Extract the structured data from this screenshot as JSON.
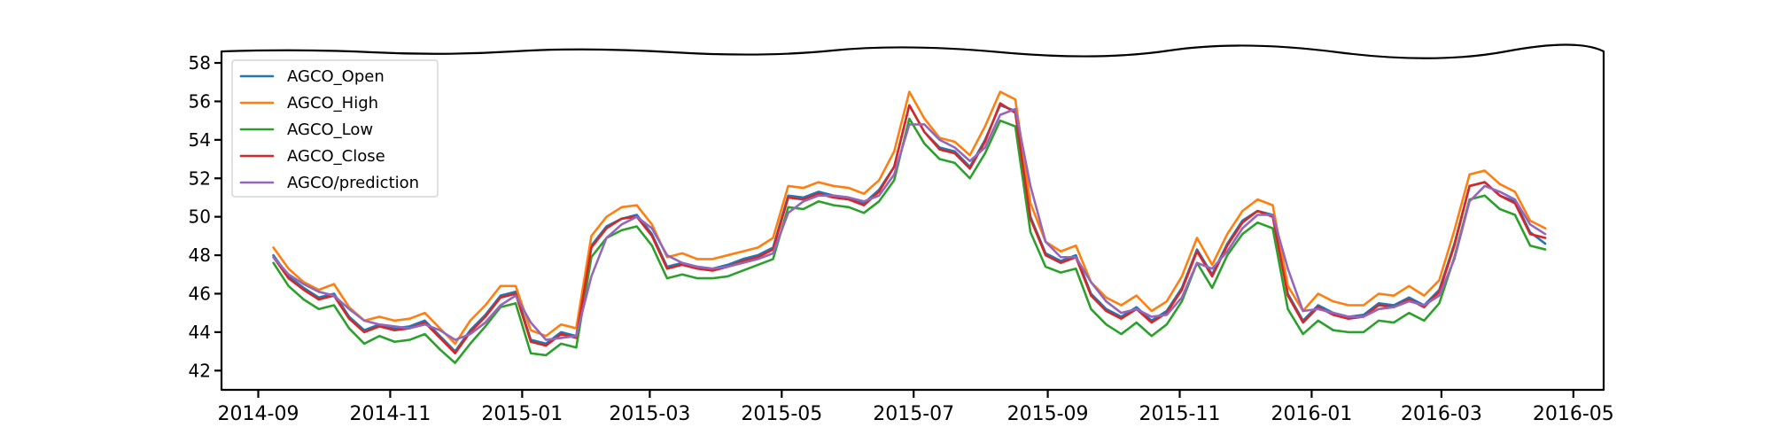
{
  "chart_data": {
    "type": "line",
    "title": "",
    "xlabel": "",
    "ylabel": "",
    "x_axis_kind": "date",
    "xlim": [
      "2014-08-15",
      "2016-05-15"
    ],
    "ylim": [
      41,
      58.6
    ],
    "grid": false,
    "legend_position": "top-left",
    "x_ticks": [
      "2014-09-01",
      "2014-11-01",
      "2015-01-01",
      "2015-03-01",
      "2015-05-01",
      "2015-07-01",
      "2015-09-01",
      "2015-11-01",
      "2016-01-01",
      "2016-03-01",
      "2016-05-01"
    ],
    "x_tick_labels": [
      "2014-09",
      "2014-11",
      "2015-01",
      "2015-03",
      "2015-05",
      "2015-07",
      "2015-09",
      "2015-11",
      "2016-01",
      "2016-03",
      "2016-05"
    ],
    "y_ticks": [
      42,
      44,
      46,
      48,
      50,
      52,
      54,
      56,
      58
    ],
    "y_tick_labels": [
      "42",
      "44",
      "46",
      "48",
      "50",
      "52",
      "54",
      "56",
      "58"
    ],
    "x": [
      "2014-09-08",
      "2014-09-15",
      "2014-09-22",
      "2014-09-29",
      "2014-10-06",
      "2014-10-13",
      "2014-10-20",
      "2014-10-27",
      "2014-11-03",
      "2014-11-10",
      "2014-11-17",
      "2014-11-24",
      "2014-12-01",
      "2014-12-08",
      "2014-12-15",
      "2014-12-22",
      "2014-12-29",
      "2015-01-05",
      "2015-01-12",
      "2015-01-19",
      "2015-01-26",
      "2015-02-02",
      "2015-02-09",
      "2015-02-16",
      "2015-02-23",
      "2015-03-02",
      "2015-03-09",
      "2015-03-16",
      "2015-03-23",
      "2015-03-30",
      "2015-04-06",
      "2015-04-13",
      "2015-04-20",
      "2015-04-27",
      "2015-05-04",
      "2015-05-11",
      "2015-05-18",
      "2015-05-25",
      "2015-06-01",
      "2015-06-08",
      "2015-06-15",
      "2015-06-22",
      "2015-06-29",
      "2015-07-06",
      "2015-07-13",
      "2015-07-20",
      "2015-07-27",
      "2015-08-03",
      "2015-08-10",
      "2015-08-17",
      "2015-08-24",
      "2015-08-31",
      "2015-09-07",
      "2015-09-14",
      "2015-09-21",
      "2015-09-28",
      "2015-10-05",
      "2015-10-12",
      "2015-10-19",
      "2015-10-26",
      "2015-11-02",
      "2015-11-09",
      "2015-11-16",
      "2015-11-23",
      "2015-11-30",
      "2015-12-07",
      "2015-12-14",
      "2015-12-21",
      "2015-12-28",
      "2016-01-04",
      "2016-01-11",
      "2016-01-18",
      "2016-01-25",
      "2016-02-01",
      "2016-02-08",
      "2016-02-15",
      "2016-02-22",
      "2016-02-29",
      "2016-03-07",
      "2016-03-14",
      "2016-03-21",
      "2016-03-28",
      "2016-04-04",
      "2016-04-11",
      "2016-04-18"
    ],
    "series": [
      {
        "name": "AGCO_Open",
        "color": "#1f77b4",
        "values": [
          48.0,
          46.9,
          46.3,
          45.8,
          46.0,
          44.8,
          44.1,
          44.4,
          44.2,
          44.3,
          44.6,
          43.8,
          43.0,
          44.1,
          44.9,
          45.9,
          46.1,
          43.6,
          43.4,
          44.0,
          43.8,
          48.5,
          49.5,
          49.9,
          50.1,
          49.1,
          47.4,
          47.6,
          47.4,
          47.3,
          47.5,
          47.8,
          48.0,
          48.4,
          51.1,
          51.0,
          51.3,
          51.1,
          51.0,
          50.7,
          51.4,
          52.6,
          55.8,
          54.4,
          53.6,
          53.4,
          52.6,
          54.0,
          55.8,
          55.5,
          50.0,
          48.1,
          47.7,
          48.0,
          46.0,
          45.2,
          44.8,
          45.3,
          44.6,
          45.1,
          46.3,
          48.3,
          47.0,
          48.6,
          49.8,
          50.3,
          50.1,
          46.0,
          44.6,
          45.4,
          45.0,
          44.8,
          44.9,
          45.5,
          45.4,
          45.8,
          45.4,
          46.2,
          48.6,
          51.6,
          51.8,
          51.1,
          50.8,
          49.2,
          48.6
        ]
      },
      {
        "name": "AGCO_High",
        "color": "#ff7f0e",
        "values": [
          48.4,
          47.3,
          46.6,
          46.2,
          46.5,
          45.3,
          44.6,
          44.8,
          44.6,
          44.7,
          45.0,
          44.2,
          43.4,
          44.6,
          45.4,
          46.4,
          46.4,
          44.1,
          43.8,
          44.4,
          44.2,
          49.0,
          50.0,
          50.5,
          50.6,
          49.6,
          47.9,
          48.1,
          47.8,
          47.8,
          48.0,
          48.2,
          48.4,
          48.9,
          51.6,
          51.5,
          51.8,
          51.6,
          51.5,
          51.2,
          51.9,
          53.4,
          56.5,
          55.1,
          54.1,
          53.9,
          53.2,
          54.7,
          56.5,
          56.1,
          50.7,
          48.7,
          48.2,
          48.5,
          46.6,
          45.8,
          45.4,
          45.9,
          45.1,
          45.6,
          46.9,
          48.9,
          47.5,
          49.1,
          50.3,
          50.9,
          50.6,
          46.4,
          45.1,
          46.0,
          45.6,
          45.4,
          45.4,
          46.0,
          45.9,
          46.4,
          45.9,
          46.7,
          49.3,
          52.2,
          52.4,
          51.7,
          51.3,
          49.8,
          49.4
        ]
      },
      {
        "name": "AGCO_Low",
        "color": "#2ca02c",
        "values": [
          47.6,
          46.4,
          45.7,
          45.2,
          45.4,
          44.2,
          43.4,
          43.8,
          43.5,
          43.6,
          43.9,
          43.1,
          42.4,
          43.4,
          44.3,
          45.3,
          45.5,
          42.9,
          42.8,
          43.4,
          43.2,
          47.9,
          48.9,
          49.3,
          49.5,
          48.5,
          46.8,
          47.0,
          46.8,
          46.8,
          46.9,
          47.2,
          47.5,
          47.8,
          50.5,
          50.4,
          50.8,
          50.6,
          50.5,
          50.2,
          50.8,
          51.9,
          55.1,
          53.8,
          53.0,
          52.8,
          52.0,
          53.3,
          55.0,
          54.7,
          49.2,
          47.4,
          47.1,
          47.3,
          45.2,
          44.4,
          43.9,
          44.5,
          43.8,
          44.4,
          45.6,
          47.6,
          46.3,
          48.0,
          49.1,
          49.7,
          49.4,
          45.2,
          43.9,
          44.6,
          44.1,
          44.0,
          44.0,
          44.6,
          44.5,
          45.0,
          44.6,
          45.5,
          47.9,
          50.9,
          51.1,
          50.4,
          50.1,
          48.5,
          48.3
        ]
      },
      {
        "name": "AGCO_Close",
        "color": "#d62728",
        "values": [
          47.9,
          46.8,
          46.2,
          45.7,
          45.9,
          44.7,
          44.0,
          44.3,
          44.1,
          44.2,
          44.5,
          43.7,
          42.9,
          44.0,
          44.8,
          45.8,
          46.0,
          43.5,
          43.3,
          43.9,
          43.7,
          48.4,
          49.4,
          49.9,
          50.0,
          49.0,
          47.3,
          47.5,
          47.3,
          47.2,
          47.4,
          47.7,
          47.9,
          48.3,
          51.0,
          50.9,
          51.2,
          51.0,
          50.9,
          50.6,
          51.3,
          52.6,
          55.8,
          54.4,
          53.5,
          53.3,
          52.5,
          53.9,
          55.9,
          55.4,
          49.9,
          48.0,
          47.6,
          47.9,
          45.9,
          45.1,
          44.7,
          45.2,
          44.5,
          45.0,
          46.2,
          48.2,
          46.9,
          48.5,
          49.7,
          50.3,
          50.0,
          45.9,
          44.5,
          45.3,
          44.9,
          44.7,
          44.8,
          45.4,
          45.3,
          45.7,
          45.3,
          46.1,
          48.5,
          51.6,
          51.8,
          51.1,
          50.7,
          49.1,
          48.9
        ]
      },
      {
        "name": "AGCO/prediction",
        "color": "#9467bd",
        "values": [
          47.9,
          47.0,
          46.5,
          46.1,
          45.9,
          45.2,
          44.6,
          44.4,
          44.3,
          44.2,
          44.4,
          44.1,
          43.6,
          43.9,
          44.5,
          45.4,
          45.9,
          44.5,
          43.6,
          43.7,
          43.8,
          46.9,
          48.9,
          49.6,
          50.0,
          49.4,
          48.0,
          47.6,
          47.4,
          47.3,
          47.4,
          47.6,
          47.8,
          48.1,
          50.2,
          50.8,
          51.1,
          51.1,
          51.0,
          50.8,
          51.1,
          52.2,
          54.8,
          54.8,
          54.0,
          53.6,
          52.9,
          53.6,
          55.3,
          55.6,
          51.6,
          48.7,
          47.9,
          47.9,
          46.6,
          45.6,
          45.0,
          45.2,
          44.8,
          44.9,
          45.8,
          47.6,
          47.3,
          48.2,
          49.4,
          50.1,
          50.1,
          47.3,
          45.1,
          45.2,
          45.0,
          44.8,
          44.8,
          45.2,
          45.3,
          45.6,
          45.4,
          45.9,
          47.8,
          50.8,
          51.6,
          51.3,
          50.9,
          49.6,
          49.1
        ]
      }
    ]
  }
}
